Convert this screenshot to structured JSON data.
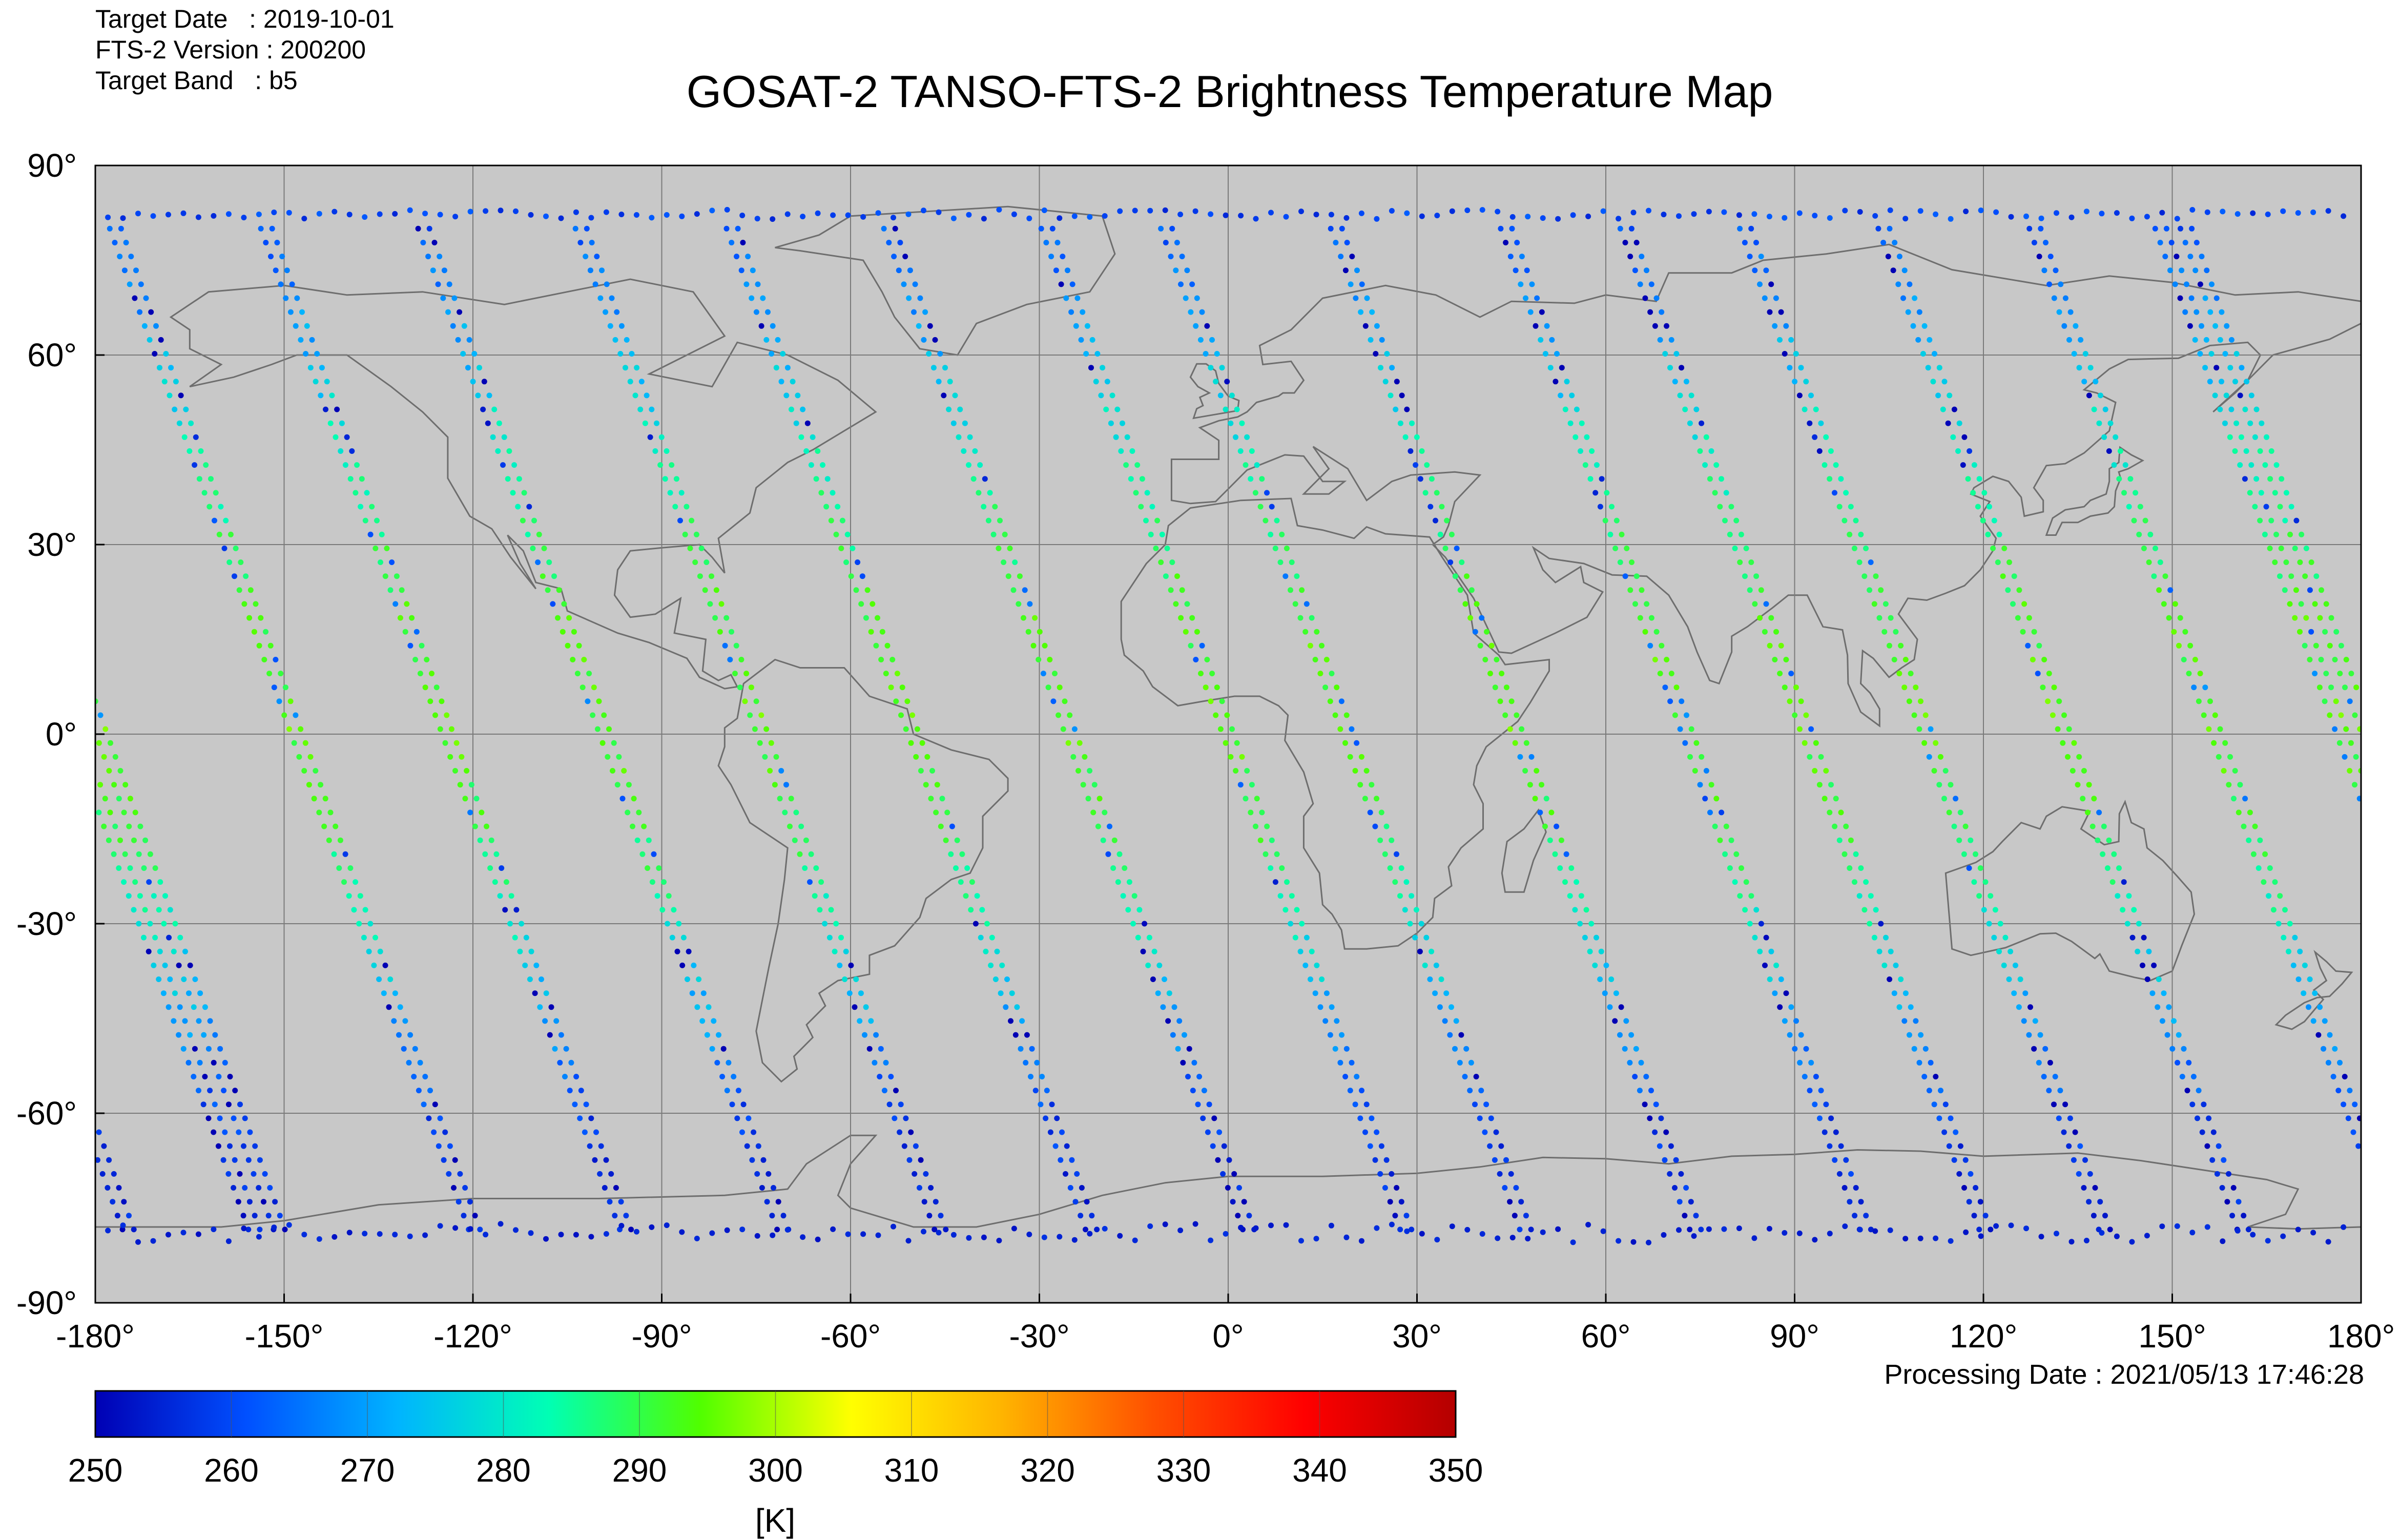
{
  "header": {
    "target_date_label": "Target Date   : 2019-10-01",
    "version_label": "FTS-2 Version : 200200",
    "band_label": "Target Band   : b5"
  },
  "title": "GOSAT-2 TANSO-FTS-2 Brightness Temperature Map",
  "processing_date": "Processing Date : 2021/05/13 17:46:28",
  "map": {
    "projection": "equirectangular",
    "lon_range": [
      -180,
      180
    ],
    "lat_range": [
      -90,
      90
    ],
    "lon_ticks": [
      "-180°",
      "-150°",
      "-120°",
      "-90°",
      "-60°",
      "-30°",
      "0°",
      "30°",
      "60°",
      "90°",
      "120°",
      "150°",
      "180°"
    ],
    "lat_ticks": [
      "90°",
      "60°",
      "30°",
      "0°",
      "-30°",
      "-60°",
      "-90°"
    ],
    "gridlines": true,
    "background_color": "#c8c8c8",
    "coastline_color": "#707070",
    "swath_lon_crossings": [
      -179,
      -148,
      -124,
      -99,
      -74,
      -50,
      -25,
      0,
      19,
      46,
      73,
      92,
      111,
      133,
      157,
      177
    ],
    "swath_temp_profile": [
      {
        "lat": 90,
        "temp": 256
      },
      {
        "lat": 65,
        "temp": 270
      },
      {
        "lat": 45,
        "temp": 282
      },
      {
        "lat": 20,
        "temp": 292
      },
      {
        "lat": 0,
        "temp": 294
      },
      {
        "lat": -20,
        "temp": 288
      },
      {
        "lat": -40,
        "temp": 274
      },
      {
        "lat": -60,
        "temp": 259
      },
      {
        "lat": -90,
        "temp": 252
      }
    ]
  },
  "colorbar": {
    "min": 250,
    "max": 350,
    "ticks": [
      "250",
      "260",
      "270",
      "280",
      "290",
      "300",
      "310",
      "320",
      "330",
      "340",
      "350"
    ],
    "unit": "[K]",
    "colormap": [
      "#0000b4",
      "#0050ff",
      "#00b4ff",
      "#00ffb4",
      "#50ff00",
      "#ffff00",
      "#ffb400",
      "#ff5000",
      "#ff0000",
      "#b40000"
    ]
  }
}
